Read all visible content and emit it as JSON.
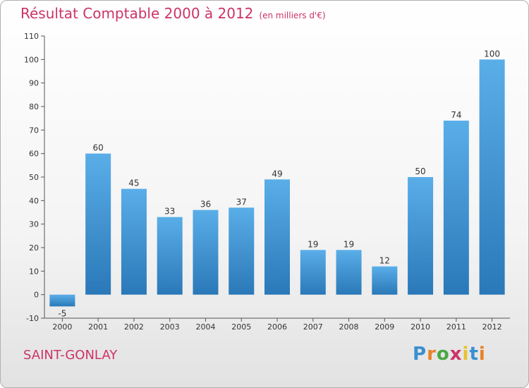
{
  "chart_data": {
    "type": "bar",
    "title": "Résultat Comptable 2000 à 2012",
    "subtitle": "(en milliers d'€)",
    "categories": [
      "2000",
      "2001",
      "2002",
      "2003",
      "2004",
      "2005",
      "2006",
      "2007",
      "2008",
      "2009",
      "2010",
      "2011",
      "2012"
    ],
    "values": [
      -5,
      60,
      45,
      33,
      36,
      37,
      49,
      19,
      19,
      12,
      50,
      74,
      100
    ],
    "ylim": [
      -10,
      110
    ],
    "yticks": [
      -10,
      0,
      10,
      20,
      30,
      40,
      50,
      60,
      70,
      80,
      90,
      100,
      110
    ],
    "grid": false,
    "bar_color_top": "#5aaee8",
    "bar_color_bottom": "#2a78b8"
  },
  "footer": {
    "place": "SAINT-GONLAY",
    "logo_letters": [
      "P",
      "r",
      "o",
      "x",
      "i",
      "t",
      "i"
    ],
    "logo_colors": [
      "#3a8fd0",
      "#e8822a",
      "#4aa843",
      "#cc3366",
      "#e8c22a",
      "#3a8fd0",
      "#e8822a"
    ]
  }
}
